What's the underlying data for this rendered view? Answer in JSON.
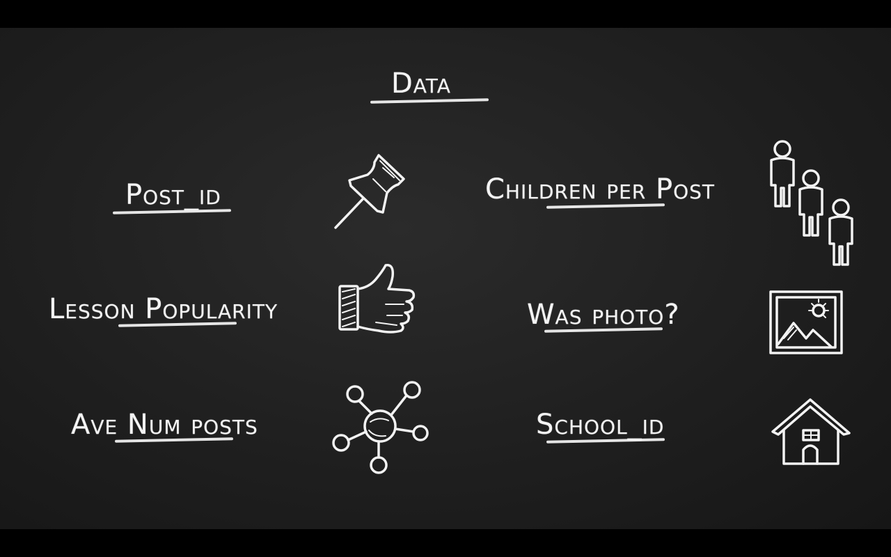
{
  "slide": {
    "title": "Data",
    "items": {
      "post_id": {
        "label": "Post_id",
        "icon": "pushpin-icon"
      },
      "lesson_popularity": {
        "label": "Lesson Popularity",
        "icon": "thumbs-up-icon"
      },
      "ave_num_posts": {
        "label": "Ave Num posts",
        "icon": "network-icon"
      },
      "children_per_post": {
        "label": "Children per Post",
        "icon": "people-icon"
      },
      "was_photo": {
        "label": "Was photo?",
        "icon": "photo-icon"
      },
      "school_id": {
        "label": "School_id",
        "icon": "house-icon"
      }
    }
  },
  "colors": {
    "background": "#1f1f1f",
    "chalk": "#f2f2f2",
    "frame": "#000000"
  }
}
